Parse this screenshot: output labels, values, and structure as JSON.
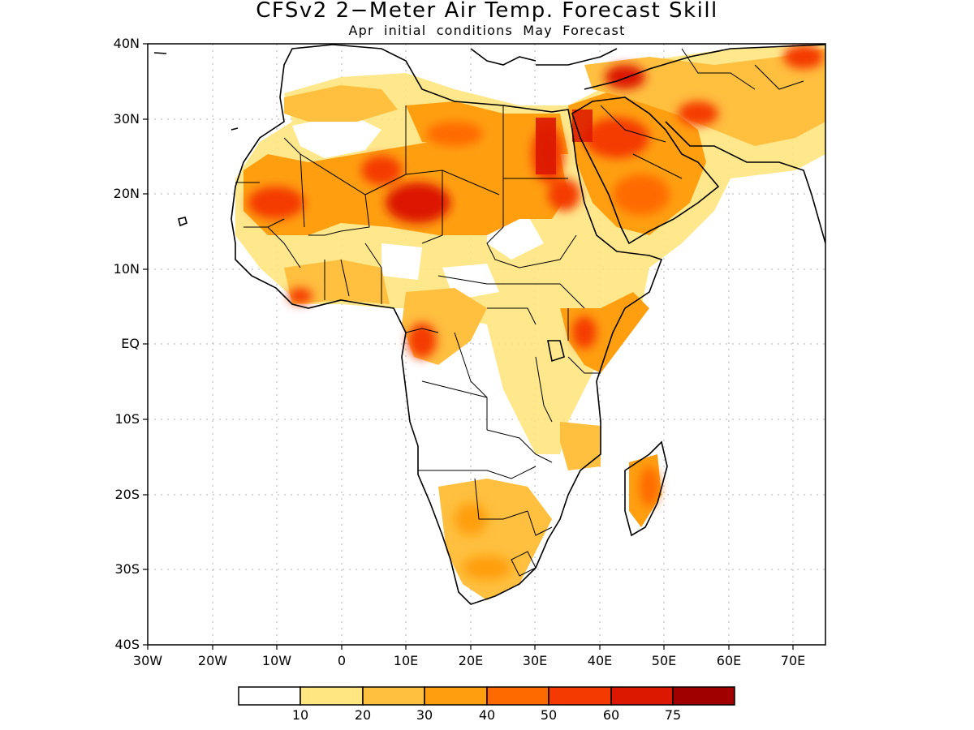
{
  "title": "CFSv2 2−Meter Air Temp. Forecast Skill",
  "subtitle": "Apr initial conditions   May Forecast",
  "axes": {
    "lat_labels": [
      "40N",
      "30N",
      "20N",
      "10N",
      "EQ",
      "10S",
      "20S",
      "30S",
      "40S"
    ],
    "lon_labels": [
      "30W",
      "20W",
      "10W",
      "0",
      "10E",
      "20E",
      "30E",
      "40E",
      "50E",
      "60E",
      "70E"
    ]
  },
  "colorbar": {
    "boundaries": [
      "10",
      "20",
      "30",
      "40",
      "50",
      "60",
      "75"
    ],
    "colors": [
      "#ffffff",
      "#ffe680",
      "#ffbf3f",
      "#ff9f10",
      "#ff6a00",
      "#f43a00",
      "#dc1800",
      "#a00000"
    ]
  },
  "map": {
    "region": "Africa and Middle East",
    "lon_range": [
      -30,
      75
    ],
    "lat_range": [
      -40,
      40
    ],
    "grid": "dotted"
  }
}
